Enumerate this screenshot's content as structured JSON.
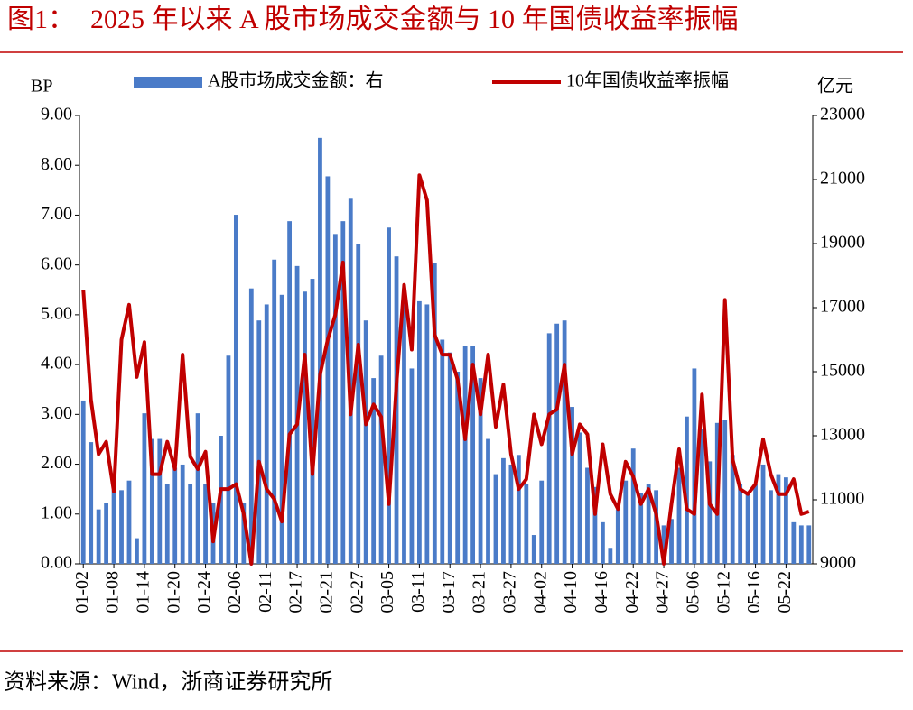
{
  "chart_data": {
    "type": "bar",
    "figure_label": "图1：",
    "title": "2025 年以来 A 股市场成交金额与 10 年国债收益率振幅",
    "source": "资料来源：Wind，浙商证券研究所",
    "y_label": "BP",
    "y2_label": "亿元",
    "categories": [
      "01-02",
      null,
      null,
      null,
      "01-08",
      null,
      null,
      null,
      "01-14",
      null,
      null,
      null,
      "01-20",
      null,
      null,
      null,
      "01-24",
      null,
      null,
      null,
      "02-06",
      null,
      null,
      null,
      "02-11",
      null,
      null,
      null,
      "02-17",
      null,
      null,
      null,
      "02-21",
      null,
      null,
      null,
      "02-27",
      null,
      null,
      null,
      "03-05",
      null,
      null,
      null,
      "03-11",
      null,
      null,
      null,
      "03-17",
      null,
      null,
      null,
      "03-21",
      null,
      null,
      null,
      "03-27",
      null,
      null,
      null,
      "04-02",
      null,
      null,
      null,
      "04-10",
      null,
      null,
      null,
      "04-16",
      null,
      null,
      null,
      "04-22",
      null,
      null,
      null,
      "04-27",
      null,
      null,
      null,
      "05-06",
      null,
      null,
      null,
      "05-12",
      null,
      null,
      null,
      "05-16",
      null,
      null,
      null,
      "05-22",
      null,
      null,
      null
    ],
    "series": [
      {
        "name": "A股市场成交金额：右",
        "type": "bar",
        "axis": "y2",
        "color": "#4a7bc8",
        "values": [
          14100,
          12800,
          10700,
          10900,
          11300,
          11300,
          11600,
          9800,
          13700,
          12900,
          12900,
          11500,
          12000,
          12100,
          11500,
          13700,
          11500,
          10900,
          13000,
          15500,
          19900,
          10900,
          17600,
          16600,
          17100,
          18500,
          17400,
          19700,
          18300,
          17500,
          17900,
          22300,
          21100,
          19300,
          19700,
          20400,
          19000,
          16600,
          14800,
          15500,
          19500,
          18600,
          17600,
          15100,
          17200,
          17100,
          18400,
          16000,
          15600,
          15000,
          15800,
          15800,
          14800,
          12900,
          11800,
          12300,
          12100,
          12400,
          11500,
          9900,
          11600,
          16200,
          16500,
          16600,
          13900,
          13100,
          12000,
          11400,
          10300,
          9500,
          10700,
          11600,
          12600,
          11200,
          11500,
          11300,
          10200,
          10400,
          12000,
          13600,
          15100,
          13200,
          12200,
          13400,
          13500,
          12400,
          11500,
          11200,
          11500,
          12100,
          11300,
          11800,
          11700,
          10300,
          10200,
          10200
        ]
      },
      {
        "name": "10年国债收益率振幅",
        "type": "line",
        "axis": "y",
        "color": "#c00000",
        "values": [
          5.5,
          3.3,
          2.2,
          2.45,
          1.45,
          4.5,
          5.2,
          3.75,
          4.45,
          1.8,
          1.8,
          2.45,
          1.9,
          4.2,
          2.15,
          1.9,
          2.25,
          0.45,
          1.5,
          1.5,
          1.6,
          1.0,
          0.0,
          2.05,
          1.5,
          1.3,
          0.85,
          2.6,
          2.8,
          4.2,
          1.8,
          3.8,
          4.5,
          5.0,
          6.05,
          3.0,
          4.4,
          2.8,
          3.2,
          2.95,
          1.2,
          3.6,
          5.6,
          4.3,
          7.8,
          7.3,
          4.6,
          4.2,
          4.2,
          3.7,
          2.5,
          4.0,
          3.0,
          4.2,
          2.75,
          3.6,
          2.2,
          1.5,
          1.7,
          3.0,
          2.4,
          3.0,
          3.1,
          4.0,
          2.2,
          2.8,
          2.6,
          1.0,
          2.4,
          1.4,
          1.1,
          2.05,
          1.75,
          1.2,
          1.5,
          1.0,
          0.0,
          1.2,
          2.3,
          1.1,
          1.0,
          3.4,
          1.2,
          1.0,
          5.3,
          2.1,
          1.5,
          1.4,
          1.6,
          2.5,
          1.8,
          1.4,
          1.4,
          1.7,
          1.0,
          1.05
        ]
      }
    ],
    "ylim": [
      0,
      9
    ],
    "yticks": [
      {
        "value": 0,
        "label": "0.00"
      },
      {
        "value": 1,
        "label": "1.00"
      },
      {
        "value": 2,
        "label": "2.00"
      },
      {
        "value": 3,
        "label": "3.00"
      },
      {
        "value": 4,
        "label": "4.00"
      },
      {
        "value": 5,
        "label": "5.00"
      },
      {
        "value": 6,
        "label": "6.00"
      },
      {
        "value": 7,
        "label": "7.00"
      },
      {
        "value": 8,
        "label": "8.00"
      },
      {
        "value": 9,
        "label": "9.00"
      }
    ],
    "y2lim": [
      9000,
      23000
    ],
    "y2ticks": [
      9000,
      11000,
      13000,
      15000,
      17000,
      19000,
      21000,
      23000
    ],
    "legend": "top"
  }
}
